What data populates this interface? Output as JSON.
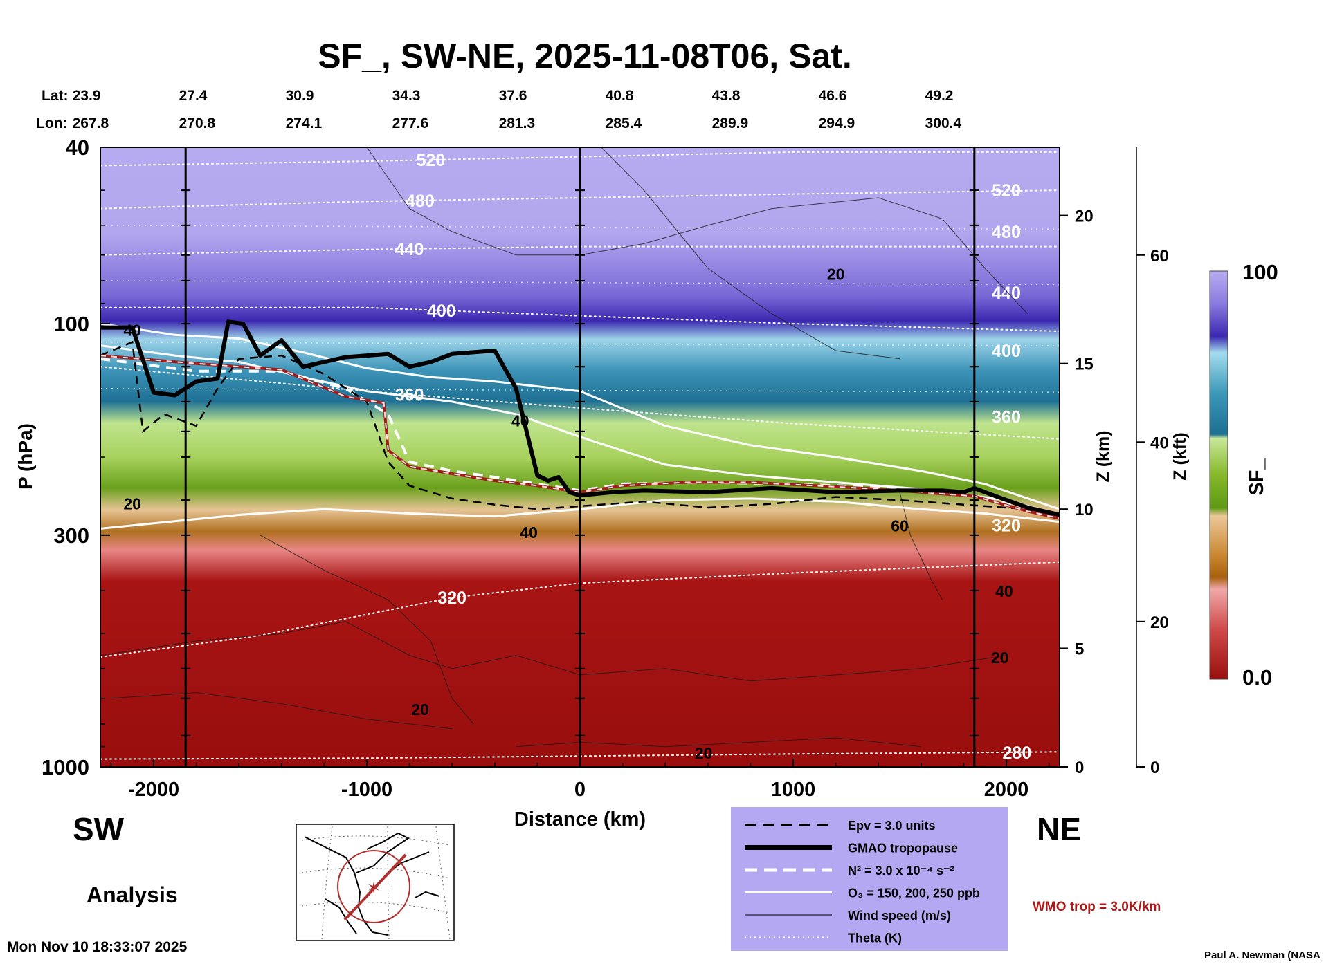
{
  "chart_data": {
    "type": "heatmap",
    "title": "SF_, SW-NE, 2025-11-08T06, Sat.",
    "xlabel": "Distance (km)",
    "ylabel": "P (hPa)",
    "y2label": "Z (km)",
    "y3label": "Z (kft)",
    "colorbar_label": "SF_",
    "x_range": [
      -2250,
      2250
    ],
    "p_range": [
      1000,
      40
    ],
    "p_scale": "log",
    "x_ticks": [
      "-2000",
      "-1000",
      "0",
      "1000",
      "2000"
    ],
    "x_tick_values": [
      -2000,
      -1000,
      0,
      1000,
      2000
    ],
    "p_ticks": [
      {
        "label": "40",
        "value": 40
      },
      {
        "label": "100",
        "value": 100
      },
      {
        "label": "300",
        "value": 300
      },
      {
        "label": "1000",
        "value": 1000
      }
    ],
    "z_km_ticks": [
      {
        "label": "20",
        "p": 57
      },
      {
        "label": "15",
        "p": 123
      },
      {
        "label": "10",
        "p": 262
      },
      {
        "label": "5",
        "p": 540
      },
      {
        "label": "0",
        "p": 1000
      }
    ],
    "z_kft_ticks": [
      {
        "label": "60",
        "p": 70
      },
      {
        "label": "40",
        "p": 185
      },
      {
        "label": "20",
        "p": 470
      },
      {
        "label": "0",
        "p": 1000
      }
    ],
    "lat_label": "Lat:",
    "lon_label": "Lon:",
    "lat_values": [
      "23.9",
      "27.4",
      "30.9",
      "34.3",
      "37.6",
      "40.8",
      "43.8",
      "46.6",
      "49.2"
    ],
    "lon_values": [
      "267.8",
      "270.8",
      "274.1",
      "277.6",
      "281.3",
      "285.4",
      "289.9",
      "294.9",
      "300.4"
    ],
    "latlon_x": [
      -2300,
      -1800,
      -1300,
      -800,
      -300,
      200,
      700,
      1200,
      1700
    ],
    "vertical_lines_x": [
      -1850,
      0,
      1850
    ],
    "colorbar_max": "100",
    "colorbar_min": "0.0",
    "colorbar_colors": [
      "#9a0e0e",
      "#b51c1c",
      "#cd3a3a",
      "#e06a6a",
      "#eea0a0",
      "#a8600e",
      "#c9852e",
      "#dfa668",
      "#ecc898",
      "#5f9a14",
      "#86b828",
      "#a8d25e",
      "#c8e89a",
      "#1d7396",
      "#3a98b8",
      "#6bbcd8",
      "#9cd6ea",
      "#2a1a9a",
      "#4a38c0",
      "#7a6ad8",
      "#a498e8",
      "#b8acf0"
    ],
    "tropopause_gmao": [
      [
        -2250,
        102
      ],
      [
        -2100,
        102
      ],
      [
        -2000,
        143
      ],
      [
        -1900,
        145
      ],
      [
        -1800,
        135
      ],
      [
        -1700,
        133
      ],
      [
        -1650,
        99
      ],
      [
        -1580,
        100
      ],
      [
        -1500,
        118
      ],
      [
        -1400,
        109
      ],
      [
        -1300,
        125
      ],
      [
        -1100,
        119
      ],
      [
        -900,
        117
      ],
      [
        -800,
        125
      ],
      [
        -700,
        122
      ],
      [
        -600,
        117
      ],
      [
        -400,
        115
      ],
      [
        -300,
        140
      ],
      [
        -200,
        220
      ],
      [
        -150,
        226
      ],
      [
        -100,
        222
      ],
      [
        -50,
        240
      ],
      [
        0,
        244
      ],
      [
        150,
        240
      ],
      [
        300,
        238
      ],
      [
        600,
        240
      ],
      [
        900,
        235
      ],
      [
        1200,
        240
      ],
      [
        1500,
        238
      ],
      [
        1700,
        238
      ],
      [
        1800,
        240
      ],
      [
        1850,
        235
      ],
      [
        1950,
        245
      ],
      [
        2100,
        260
      ],
      [
        2250,
        270
      ]
    ],
    "wmo_tropopause": [
      [
        -2250,
        118
      ],
      [
        -1800,
        123
      ],
      [
        -1400,
        127
      ],
      [
        -1100,
        146
      ],
      [
        -920,
        151
      ],
      [
        -900,
        193
      ],
      [
        -800,
        210
      ],
      [
        -600,
        218
      ],
      [
        -400,
        226
      ],
      [
        -200,
        232
      ],
      [
        0,
        240
      ],
      [
        200,
        232
      ],
      [
        500,
        228
      ],
      [
        800,
        228
      ],
      [
        1100,
        232
      ],
      [
        1400,
        236
      ],
      [
        1700,
        242
      ],
      [
        1850,
        245
      ],
      [
        2100,
        265
      ],
      [
        2250,
        275
      ]
    ],
    "theta_levels": [
      {
        "label": "520",
        "at_x": -700,
        "points": [
          [
            -2250,
            44
          ],
          [
            -1000,
            43
          ],
          [
            0,
            42
          ],
          [
            1000,
            41
          ],
          [
            2250,
            41
          ]
        ]
      },
      {
        "label": "480",
        "at_x": -750,
        "points": [
          [
            -2250,
            55
          ],
          [
            -1000,
            53
          ],
          [
            0,
            52
          ],
          [
            1000,
            51
          ],
          [
            2250,
            50
          ]
        ]
      },
      {
        "label": "440",
        "at_x": -800,
        "points": [
          [
            -2250,
            70
          ],
          [
            -1000,
            68
          ],
          [
            0,
            67
          ],
          [
            1000,
            67
          ],
          [
            2250,
            67
          ]
        ]
      },
      {
        "label": "400",
        "at_x": -650,
        "points": [
          [
            -2250,
            92
          ],
          [
            -1000,
            92
          ],
          [
            0,
            96
          ],
          [
            1000,
            100
          ],
          [
            2250,
            104
          ]
        ]
      },
      {
        "label": "360",
        "at_x": -800,
        "points": [
          [
            -2250,
            125
          ],
          [
            -1000,
            142
          ],
          [
            0,
            155
          ],
          [
            1000,
            168
          ],
          [
            2250,
            182
          ]
        ]
      },
      {
        "label": "320",
        "at_x": -600,
        "points": [
          [
            -2250,
            565
          ],
          [
            -1500,
            505
          ],
          [
            -600,
            415
          ],
          [
            0,
            385
          ],
          [
            1000,
            365
          ],
          [
            2250,
            345
          ]
        ]
      },
      {
        "label": "280",
        "at_x": 2050,
        "points": [
          [
            -2250,
            960
          ],
          [
            -1000,
            955
          ],
          [
            0,
            945
          ],
          [
            1000,
            935
          ],
          [
            2250,
            925
          ]
        ]
      }
    ],
    "theta_right_labels": [
      {
        "label": "520",
        "p": 50
      },
      {
        "label": "480",
        "p": 62
      },
      {
        "label": "440",
        "p": 85
      },
      {
        "label": "400",
        "p": 115
      },
      {
        "label": "360",
        "p": 162
      },
      {
        "label": "320",
        "p": 285
      }
    ],
    "wind_labels": [
      {
        "label": "20",
        "x": 1200,
        "p": 77
      },
      {
        "label": "20",
        "x": -2100,
        "p": 254
      },
      {
        "label": "40",
        "x": -240,
        "p": 295
      },
      {
        "label": "60",
        "x": 1500,
        "p": 285
      },
      {
        "label": "40",
        "x": 1990,
        "p": 400
      },
      {
        "label": "20",
        "x": 1970,
        "p": 565
      },
      {
        "label": "20",
        "x": -750,
        "p": 740
      },
      {
        "label": "20",
        "x": 580,
        "p": 928
      },
      {
        "label": "40",
        "x": -280,
        "p": 165
      },
      {
        "label": "40",
        "x": -2100,
        "p": 103
      }
    ],
    "region_left": "SW",
    "region_right": "NE",
    "analysis_label": "Analysis",
    "timestamp": "Mon Nov 10 18:33:07 2025",
    "credit": "Paul A. Newman (NASA",
    "wmo_label": "WMO trop = 3.0K/km",
    "legend_entries": [
      {
        "style": "dashed-black",
        "label": "Epv = 3.0 units"
      },
      {
        "style": "thick-black",
        "label": "GMAO tropopause"
      },
      {
        "style": "dashed-white",
        "label": "N² = 3.0 x 10⁻⁴ s⁻²"
      },
      {
        "style": "solid-white",
        "label": "O₃ = 150, 200, 250 ppb"
      },
      {
        "style": "thin-black",
        "label": "Wind speed (m/s)"
      },
      {
        "style": "dotted-white",
        "label": "Theta (K)"
      }
    ],
    "colors": {
      "legend_bg": "#b4a8f2",
      "wmo_line": "#a21a1a",
      "wmo_text": "#b01818",
      "inset_circle": "#b03030"
    }
  }
}
